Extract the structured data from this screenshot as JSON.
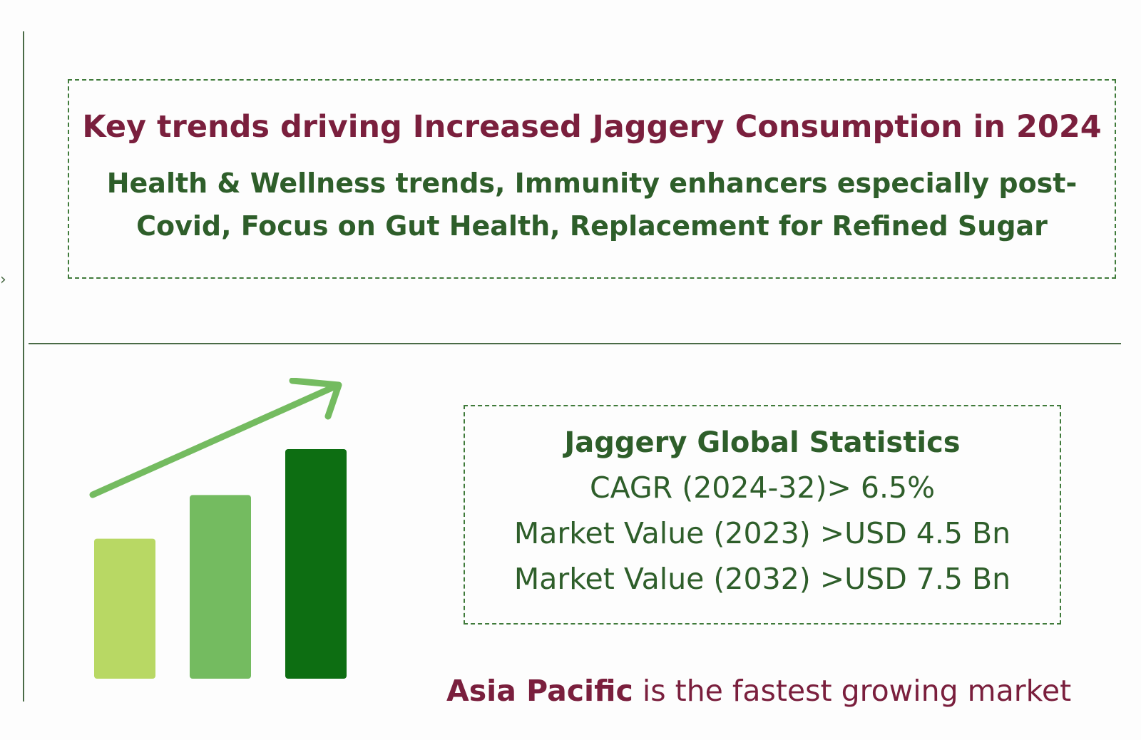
{
  "trends": {
    "title": "Key trends driving Increased Jaggery Consumption in 2024",
    "body": "Health & Wellness trends, Immunity enhancers especially post-Covid, Focus on Gut Health, Replacement for Refined Sugar"
  },
  "stats": {
    "title": "Jaggery Global Statistics",
    "lines": [
      "CAGR (2024-32)> 6.5%",
      "Market Value (2023) >USD 4.5 Bn",
      "Market Value (2032) >USD 7.5 Bn"
    ]
  },
  "footer": {
    "highlight": "Asia Pacific",
    "rest": " is the fastest growing market"
  },
  "growth_graphic": {
    "icon": "bar-growth-arrow-icon",
    "bar_levels": [
      0.61,
      0.8,
      1.0
    ],
    "bar_colors": [
      "#b8d864",
      "#74bb60",
      "#0d6e12"
    ],
    "arrow_color": "#74bb60"
  },
  "colors": {
    "maroon": "#7a1f3d",
    "green_text": "#2e5e2a",
    "rule": "#4a6b46"
  }
}
